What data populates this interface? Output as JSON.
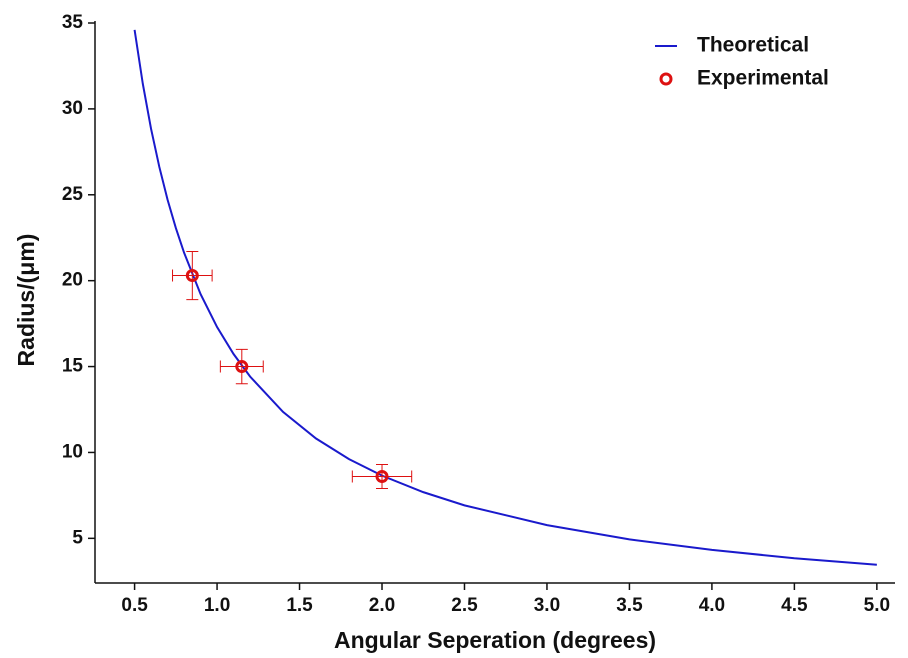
{
  "chart_data": {
    "type": "scatter",
    "x_label": "Angular Seperation (degrees)",
    "y_label": "Radius/(μm)",
    "xlim": [
      0.26,
      5.11
    ],
    "ylim": [
      2.4,
      35
    ],
    "xticks": [
      {
        "value": 0.5,
        "label": "0.5"
      },
      {
        "value": 1.0,
        "label": "1.0"
      },
      {
        "value": 1.5,
        "label": "1.5"
      },
      {
        "value": 2.0,
        "label": "2.0"
      },
      {
        "value": 2.5,
        "label": "2.5"
      },
      {
        "value": 3.0,
        "label": "3.0"
      },
      {
        "value": 3.5,
        "label": "3.5"
      },
      {
        "value": 4.0,
        "label": "4.0"
      },
      {
        "value": 4.5,
        "label": "4.5"
      },
      {
        "value": 5.0,
        "label": "5.0"
      }
    ],
    "yticks": [
      5,
      10,
      15,
      20,
      25,
      30,
      35
    ],
    "legend": "upper right",
    "series": [
      {
        "name": "Theoretical",
        "kind": "line",
        "color": "#1a1acc",
        "x": [
          0.5,
          0.55,
          0.6,
          0.65,
          0.7,
          0.75,
          0.8,
          0.9,
          1.0,
          1.1,
          1.2,
          1.4,
          1.6,
          1.8,
          2.0,
          2.25,
          2.5,
          3.0,
          3.5,
          4.0,
          4.5,
          5.0
        ],
        "values": [
          34.6,
          31.45,
          28.83,
          26.62,
          24.71,
          23.07,
          21.63,
          19.22,
          17.3,
          15.73,
          14.42,
          12.36,
          10.81,
          9.61,
          8.65,
          7.69,
          6.92,
          5.77,
          4.94,
          4.33,
          3.84,
          3.46
        ]
      },
      {
        "name": "Experimental",
        "kind": "points",
        "color": "#dd1111",
        "x": [
          0.85,
          1.15,
          2.0
        ],
        "values": [
          20.3,
          15.0,
          8.6
        ],
        "xerr": [
          0.12,
          0.13,
          0.18
        ],
        "yerr": [
          1.4,
          1.0,
          0.7
        ]
      }
    ]
  }
}
